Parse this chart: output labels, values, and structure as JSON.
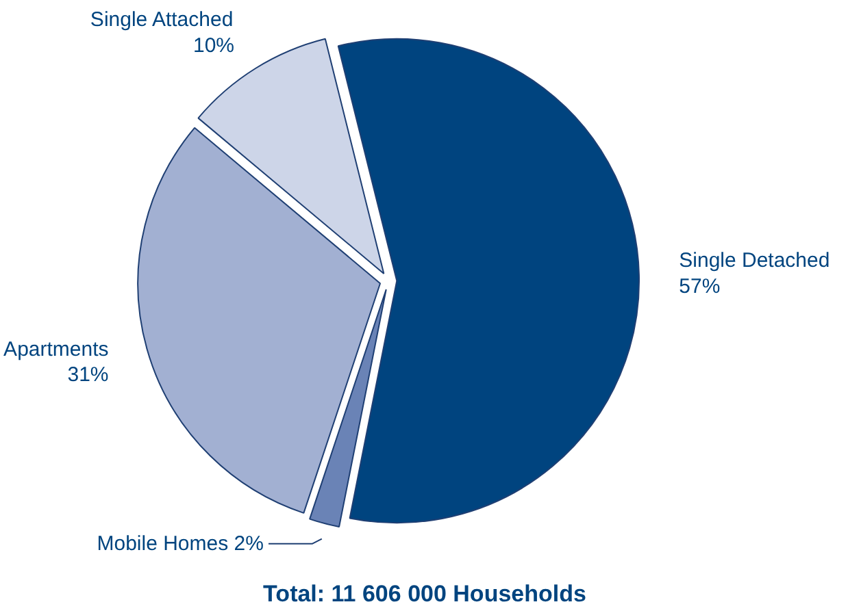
{
  "chart_data": {
    "type": "pie",
    "title": "Total: 11 606 000 Households",
    "categories": [
      "Single Detached",
      "Mobile Homes",
      "Apartments",
      "Single Attached"
    ],
    "values": [
      57,
      2,
      31,
      10
    ],
    "colors": [
      "#00447f",
      "#6a83b6",
      "#a2b0d2",
      "#cdd5e8"
    ],
    "value_labels": [
      "57%",
      "2%",
      "31%",
      "10%"
    ]
  }
}
